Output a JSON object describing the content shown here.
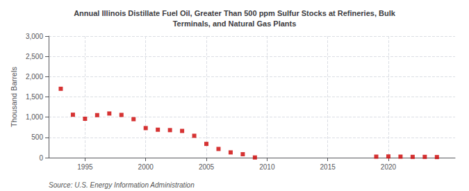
{
  "chart_data": {
    "type": "scatter",
    "title": "Annual Illinois Distillate Fuel Oil, Greater Than 500 ppm Sulfur Stocks at Refineries, Bulk\nTerminals, and Natural Gas Plants",
    "ylabel": "Thousand Barrels",
    "annotations": [
      "Source: U.S. Energy Information Administration"
    ],
    "x": [
      1993,
      1994,
      1995,
      1996,
      1997,
      1998,
      1999,
      2000,
      2001,
      2002,
      2003,
      2004,
      2005,
      2006,
      2007,
      2008,
      2009,
      2019,
      2020,
      2021,
      2022,
      2023,
      2024
    ],
    "values": [
      1700,
      1060,
      960,
      1050,
      1090,
      1055,
      950,
      730,
      690,
      680,
      660,
      540,
      340,
      215,
      130,
      85,
      5,
      25,
      30,
      25,
      20,
      20,
      15
    ],
    "color": "#cc0000",
    "marker": "square",
    "xlim": [
      1992,
      2025.5
    ],
    "xticks": [
      1995,
      2000,
      2005,
      2010,
      2015,
      2020
    ],
    "ylim": [
      0,
      3000
    ],
    "yticks": [
      0,
      500,
      {
        "value": 1000,
        "label": "1,000"
      },
      {
        "value": 1500,
        "label": "1,500"
      },
      {
        "value": 2000,
        "label": "2,000"
      },
      {
        "value": 2500,
        "label": "2,500"
      },
      {
        "value": 3000,
        "label": "3,000"
      }
    ],
    "grid": true
  }
}
